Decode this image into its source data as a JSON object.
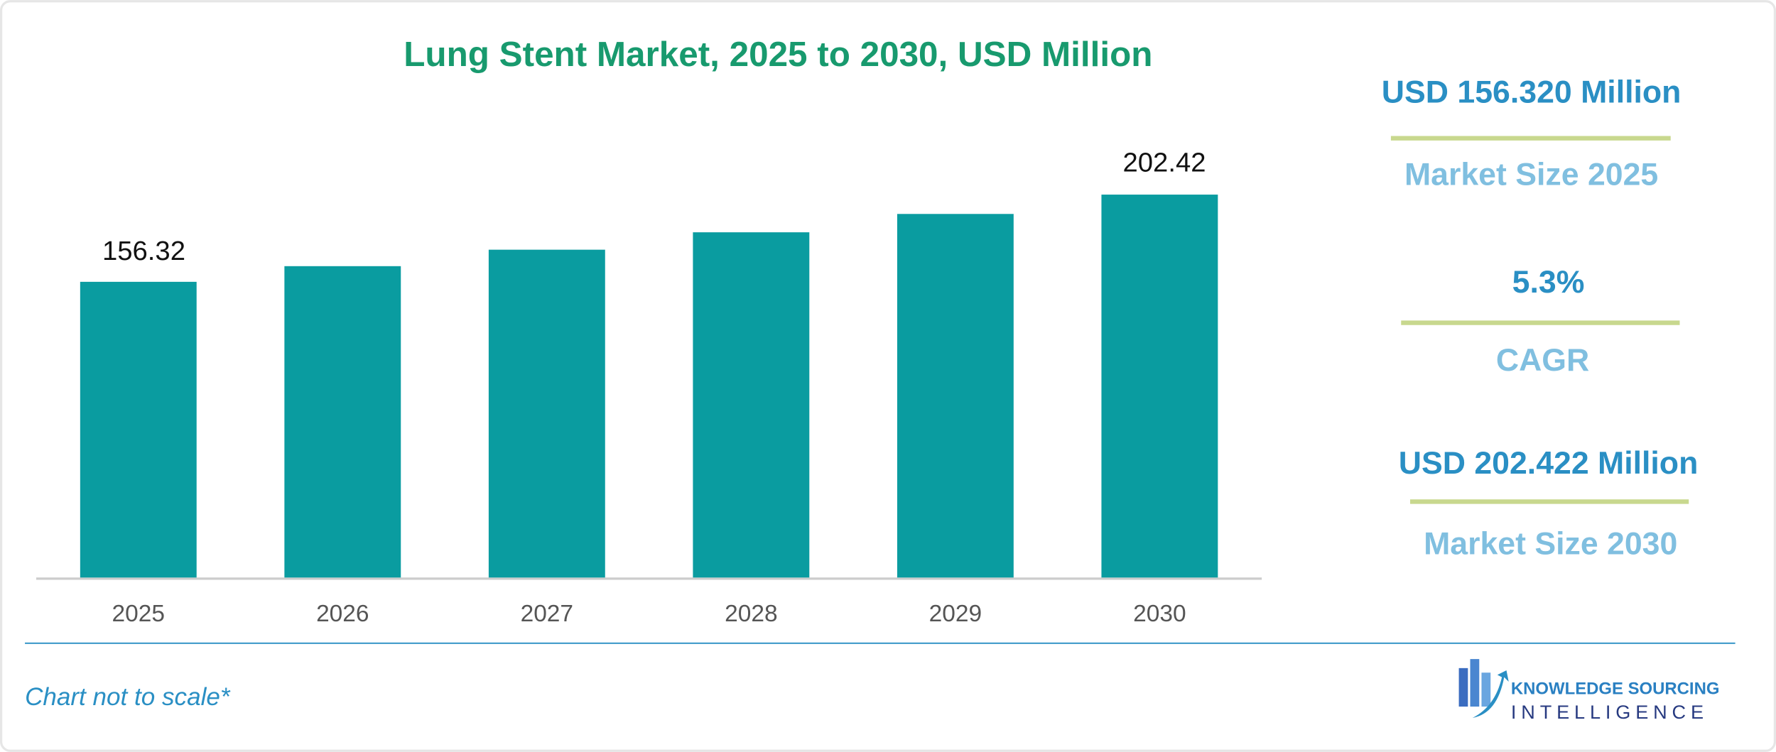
{
  "chart_data": {
    "type": "bar",
    "title": "Lung Stent Market, 2025 to 2030, USD Million",
    "categories": [
      "2025",
      "2026",
      "2027",
      "2028",
      "2029",
      "2030"
    ],
    "values": [
      156.32,
      164.6,
      173.3,
      182.5,
      192.2,
      202.42
    ],
    "color": "#0a9ca0",
    "ylim": [
      0,
      240
    ],
    "grid": false
  },
  "summary": [
    {
      "value": "USD 156.320 Million",
      "label": "Market Size 2025"
    },
    {
      "value": "5.3%",
      "label": "CAGR"
    },
    {
      "value": "USD 202.422 Million",
      "label": "Market Size 2030"
    }
  ],
  "footer": {
    "note": "Chart not to scale*",
    "logo_top": "KNOWLEDGE SOURCING",
    "logo_bottom": "INTELLIGENCE"
  }
}
